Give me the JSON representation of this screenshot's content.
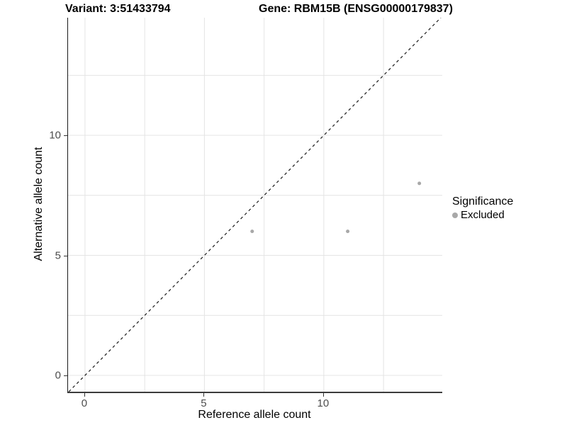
{
  "titles": {
    "variant": "Variant: 3:51433794",
    "gene": "Gene: RBM15B (ENSG00000179837)"
  },
  "axes": {
    "x_label": "Reference allele count",
    "y_label": "Alternative allele count",
    "x_ticks": [
      0,
      5,
      10
    ],
    "y_ticks": [
      0,
      5,
      10
    ]
  },
  "legend": {
    "title": "Significance",
    "items": [
      {
        "label": "Excluded",
        "color": "#a8a8a8"
      }
    ]
  },
  "colors": {
    "point": "#a8a8a8",
    "grid": "#e4e4e4",
    "reference_line": "#1a1a1a",
    "axis_text": "#4d4d4d"
  },
  "chart_data": {
    "type": "scatter",
    "title": "Variant: 3:51433794 / Gene: RBM15B (ENSG00000179837)",
    "xlabel": "Reference allele count",
    "ylabel": "Alternative allele count",
    "xlim": [
      -0.71,
      14.96
    ],
    "ylim": [
      -0.68,
      14.9
    ],
    "x_tick_values": [
      0,
      5,
      10
    ],
    "y_tick_values": [
      0,
      5,
      10
    ],
    "grid": true,
    "grid_positions": [
      0,
      2.5,
      5,
      7.5,
      10,
      12.5
    ],
    "series": [
      {
        "name": "Excluded",
        "color": "#a8a8a8",
        "marker_radius": 2.5,
        "points": [
          {
            "x": 7,
            "y": 6
          },
          {
            "x": 11,
            "y": 6
          },
          {
            "x": 14,
            "y": 8
          }
        ]
      }
    ],
    "reference_line": {
      "kind": "identity",
      "equation": "y = x",
      "style": "dashed",
      "color": "#1a1a1a"
    },
    "legend": {
      "title": "Significance",
      "position": "right",
      "entries": [
        "Excluded"
      ]
    }
  }
}
